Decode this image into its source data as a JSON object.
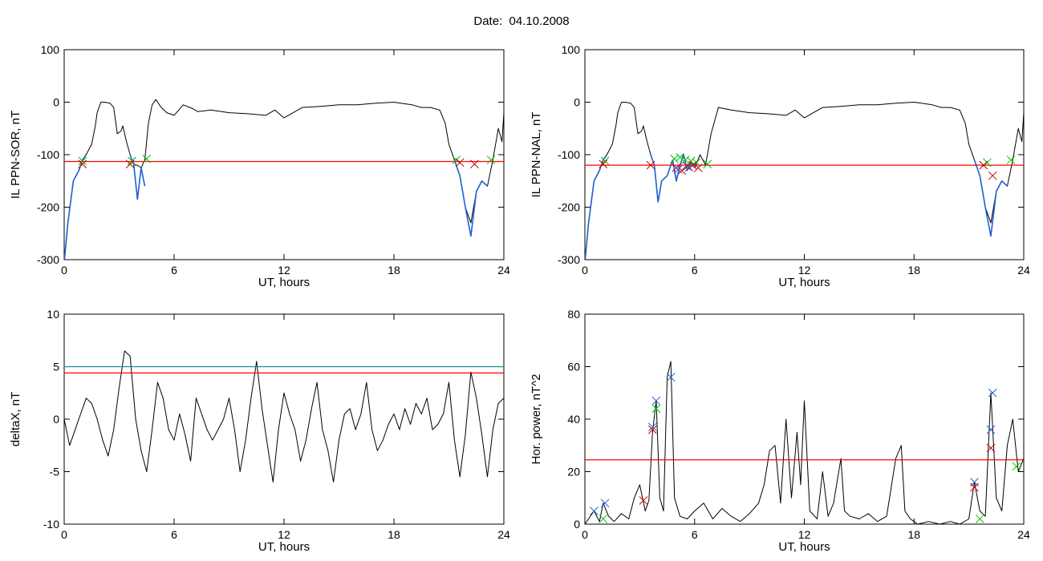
{
  "figure_title": "Date:  04.10.2008",
  "chart_data": [
    {
      "id": "il-ppn-sor",
      "type": "line",
      "xlabel": "UT, hours",
      "ylabel": "IL PPN-SOR, nT",
      "xlim": [
        0,
        24
      ],
      "ylim": [
        -300,
        100
      ],
      "xticks": [
        "0",
        "6",
        "12",
        "18",
        "24"
      ],
      "yticks": [
        "-300",
        "-200",
        "-100",
        "0",
        "100"
      ],
      "threshold_lines": [
        {
          "y": -113,
          "color": "#ff0000"
        }
      ],
      "series": [
        {
          "color": "#000000",
          "x": [
            0,
            0.2,
            0.5,
            0.8,
            1.0,
            1.2,
            1.5,
            1.7,
            1.8,
            2.0,
            2.2,
            2.5,
            2.7,
            2.9,
            3.1,
            3.2,
            3.4,
            3.6,
            3.8,
            4.0,
            4.2,
            4.4,
            4.6,
            4.8,
            5.0,
            5.3,
            5.6,
            6,
            6.5,
            7,
            7.3,
            8,
            9,
            10,
            11,
            11.5,
            12,
            12.5,
            13,
            14,
            15,
            16,
            17,
            18,
            19,
            19.5,
            20,
            20.5,
            20.8,
            21.0,
            21.3,
            21.6,
            21.9,
            22.2,
            22.5,
            22.8,
            23.1,
            23.4,
            23.7,
            23.9,
            24
          ],
          "y": [
            -305,
            -230,
            -150,
            -130,
            -110,
            -100,
            -80,
            -45,
            -20,
            0,
            0,
            -2,
            -10,
            -60,
            -55,
            -45,
            -75,
            -100,
            -120,
            -120,
            -125,
            -110,
            -40,
            -5,
            5,
            -10,
            -20,
            -25,
            -5,
            -12,
            -18,
            -15,
            -20,
            -22,
            -25,
            -15,
            -30,
            -20,
            -10,
            -8,
            -5,
            -5,
            -2,
            0,
            -5,
            -10,
            -10,
            -15,
            -40,
            -80,
            -110,
            -140,
            -200,
            -230,
            -170,
            -150,
            -160,
            -110,
            -50,
            -75,
            -20
          ]
        },
        {
          "color": "#1f5fd0",
          "x": [
            0,
            0.2,
            0.5,
            0.8,
            1.0,
            1.2
          ],
          "y": [
            -305,
            -230,
            -150,
            -130,
            -110,
            -100
          ]
        },
        {
          "color": "#1f5fd0",
          "x": [
            3.6,
            3.8,
            4.0,
            4.2,
            4.4
          ],
          "y": [
            -100,
            -120,
            -185,
            -125,
            -160
          ]
        },
        {
          "color": "#1f5fd0",
          "x": [
            21.3,
            21.6,
            21.9,
            22.2,
            22.5,
            22.8,
            23.1
          ],
          "y": [
            -110,
            -140,
            -200,
            -255,
            -170,
            -150,
            -160
          ]
        }
      ],
      "markers": [
        {
          "color": "#00c000",
          "x": [
            1.0,
            3.7,
            4.5,
            21.4,
            23.3
          ],
          "y": [
            -112,
            -112,
            -108,
            -110,
            -110
          ]
        },
        {
          "color": "#cc0000",
          "x": [
            1.0,
            3.6,
            21.6,
            22.4
          ],
          "y": [
            -118,
            -118,
            -115,
            -118
          ]
        }
      ]
    },
    {
      "id": "il-ppn-nal",
      "type": "line",
      "xlabel": "UT, hours",
      "ylabel": "IL PPN-NAL, nT",
      "xlim": [
        0,
        24
      ],
      "ylim": [
        -300,
        100
      ],
      "xticks": [
        "0",
        "6",
        "12",
        "18",
        "24"
      ],
      "yticks": [
        "-300",
        "-200",
        "-100",
        "0",
        "100"
      ],
      "threshold_lines": [
        {
          "y": -120,
          "color": "#ff0000"
        }
      ],
      "series": [
        {
          "color": "#000000",
          "x": [
            0,
            0.2,
            0.5,
            0.8,
            1.0,
            1.2,
            1.5,
            1.7,
            1.8,
            2.0,
            2.2,
            2.5,
            2.7,
            2.9,
            3.1,
            3.2,
            3.4,
            3.6,
            3.8,
            4.0,
            4.2,
            4.5,
            4.8,
            5.0,
            5.2,
            5.4,
            5.6,
            5.8,
            6.0,
            6.3,
            6.6,
            6.9,
            7.3,
            8,
            9,
            10,
            11,
            11.5,
            12,
            12.5,
            13,
            14,
            15,
            16,
            17,
            18,
            19,
            19.5,
            20,
            20.5,
            20.8,
            21.0,
            21.3,
            21.6,
            21.9,
            22.2,
            22.5,
            22.8,
            23.1,
            23.4,
            23.7,
            23.9,
            24
          ],
          "y": [
            -305,
            -230,
            -150,
            -130,
            -110,
            -100,
            -80,
            -45,
            -20,
            0,
            0,
            -2,
            -10,
            -60,
            -55,
            -45,
            -75,
            -100,
            -120,
            -190,
            -150,
            -140,
            -110,
            -150,
            -120,
            -100,
            -130,
            -115,
            -125,
            -100,
            -120,
            -60,
            -10,
            -15,
            -20,
            -22,
            -25,
            -15,
            -30,
            -20,
            -10,
            -8,
            -5,
            -5,
            -2,
            0,
            -5,
            -10,
            -10,
            -15,
            -40,
            -80,
            -110,
            -140,
            -200,
            -230,
            -170,
            -150,
            -160,
            -110,
            -50,
            -75,
            -20
          ]
        },
        {
          "color": "#1f5fd0",
          "x": [
            0,
            0.2,
            0.5,
            0.8,
            1.0,
            1.2
          ],
          "y": [
            -305,
            -230,
            -150,
            -130,
            -110,
            -100
          ]
        },
        {
          "color": "#1f5fd0",
          "x": [
            3.6,
            3.8,
            4.0,
            4.2,
            4.5,
            4.8,
            5.0,
            5.2,
            5.4,
            5.6,
            5.8,
            6.0
          ],
          "y": [
            -100,
            -120,
            -190,
            -150,
            -140,
            -110,
            -150,
            -120,
            -100,
            -130,
            -115,
            -125
          ]
        },
        {
          "color": "#1f5fd0",
          "x": [
            21.3,
            21.6,
            21.9,
            22.2,
            22.5,
            22.8,
            23.1
          ],
          "y": [
            -110,
            -140,
            -200,
            -255,
            -170,
            -150,
            -160
          ]
        }
      ],
      "markers": [
        {
          "color": "#00c000",
          "x": [
            1.1,
            4.9,
            5.2,
            5.5,
            5.8,
            6.1,
            6.7,
            22.0,
            23.3
          ],
          "y": [
            -112,
            -108,
            -105,
            -110,
            -112,
            -115,
            -118,
            -115,
            -110
          ]
        },
        {
          "color": "#cc0000",
          "x": [
            1.0,
            3.6,
            5.0,
            5.3,
            5.6,
            5.9,
            6.2,
            21.8,
            22.3
          ],
          "y": [
            -118,
            -120,
            -125,
            -130,
            -122,
            -120,
            -125,
            -120,
            -140
          ]
        },
        {
          "color": "#1f5fd0",
          "x": [
            5.1,
            5.7
          ],
          "y": [
            -128,
            -124
          ]
        }
      ]
    },
    {
      "id": "deltax",
      "type": "line",
      "xlabel": "UT, hours",
      "ylabel": "deltaX, nT",
      "xlim": [
        0,
        24
      ],
      "ylim": [
        -10,
        10
      ],
      "xticks": [
        "0",
        "6",
        "12",
        "18",
        "24"
      ],
      "yticks": [
        "-10",
        "-5",
        "0",
        "5",
        "10"
      ],
      "threshold_lines": [
        {
          "y": 5.0,
          "color": "#1f8f8f"
        },
        {
          "y": 4.4,
          "color": "#ff0000"
        }
      ],
      "series": [
        {
          "color": "#000000",
          "x": [
            0,
            0.3,
            0.6,
            0.9,
            1.2,
            1.5,
            1.8,
            2.1,
            2.4,
            2.7,
            3.0,
            3.3,
            3.6,
            3.9,
            4.2,
            4.5,
            4.8,
            5.1,
            5.4,
            5.7,
            6.0,
            6.3,
            6.6,
            6.9,
            7.2,
            7.5,
            7.8,
            8.1,
            8.4,
            8.7,
            9.0,
            9.3,
            9.6,
            9.9,
            10.2,
            10.5,
            10.8,
            11.1,
            11.4,
            11.7,
            12.0,
            12.3,
            12.6,
            12.9,
            13.2,
            13.5,
            13.8,
            14.1,
            14.4,
            14.7,
            15.0,
            15.3,
            15.6,
            15.9,
            16.2,
            16.5,
            16.8,
            17.1,
            17.4,
            17.7,
            18.0,
            18.3,
            18.6,
            18.9,
            19.2,
            19.5,
            19.8,
            20.1,
            20.4,
            20.7,
            21.0,
            21.3,
            21.6,
            21.9,
            22.2,
            22.5,
            22.8,
            23.1,
            23.4,
            23.7,
            24.0
          ],
          "y": [
            0,
            -2.5,
            -1,
            0.5,
            2,
            1.5,
            0,
            -2,
            -3.5,
            -1,
            3,
            6.5,
            6,
            0,
            -3,
            -5,
            -1,
            3.5,
            2,
            -1,
            -2,
            0.5,
            -1.5,
            -4,
            2,
            0.5,
            -1,
            -2,
            -1,
            0,
            2,
            -1,
            -5,
            -2,
            2,
            5.5,
            1,
            -2.5,
            -6,
            -1,
            2.5,
            0.5,
            -1,
            -4,
            -2,
            1,
            3.5,
            -1,
            -3,
            -6,
            -2,
            0.5,
            1,
            -1,
            0.5,
            3.5,
            -1,
            -3,
            -2,
            -0.5,
            0.5,
            -1,
            1,
            -0.5,
            1.5,
            0.5,
            2,
            -1,
            -0.5,
            0.5,
            3.5,
            -2,
            -5.5,
            -1.5,
            4.5,
            2,
            -1.5,
            -5.5,
            -1,
            1.5,
            2
          ]
        }
      ],
      "markers": []
    },
    {
      "id": "hor-power",
      "type": "line",
      "xlabel": "UT, hours",
      "ylabel": "Hor. power, nT^2",
      "xlim": [
        0,
        24
      ],
      "ylim": [
        0,
        80
      ],
      "xticks": [
        "0",
        "6",
        "12",
        "18",
        "24"
      ],
      "yticks": [
        "0",
        "20",
        "40",
        "60",
        "80"
      ],
      "threshold_lines": [
        {
          "y": 24.5,
          "color": "#ff0000"
        }
      ],
      "series": [
        {
          "color": "#000000",
          "x": [
            0,
            0.5,
            0.8,
            1.0,
            1.3,
            1.6,
            2.0,
            2.4,
            2.7,
            3.0,
            3.3,
            3.5,
            3.7,
            3.9,
            4.1,
            4.3,
            4.5,
            4.7,
            4.9,
            5.2,
            5.6,
            6.0,
            6.5,
            7.0,
            7.5,
            8.0,
            8.5,
            9.0,
            9.5,
            9.8,
            10.1,
            10.4,
            10.7,
            11.0,
            11.3,
            11.6,
            11.8,
            12.0,
            12.3,
            12.7,
            13.0,
            13.3,
            13.6,
            14.0,
            14.2,
            14.5,
            15.0,
            15.5,
            16.0,
            16.5,
            17.0,
            17.3,
            17.5,
            17.8,
            18.2,
            18.8,
            19.4,
            20.0,
            20.5,
            21.0,
            21.3,
            21.6,
            21.9,
            22.2,
            22.5,
            22.8,
            23.1,
            23.4,
            23.7,
            24.0
          ],
          "y": [
            0,
            5,
            1,
            8,
            3,
            1,
            4,
            2,
            10,
            15,
            5,
            9,
            35,
            47,
            10,
            5,
            56,
            62,
            10,
            3,
            2,
            5,
            8,
            2,
            6,
            3,
            1,
            4,
            8,
            15,
            28,
            30,
            8,
            40,
            10,
            35,
            15,
            47,
            5,
            2,
            20,
            3,
            8,
            25,
            5,
            3,
            2,
            4,
            1,
            3,
            25,
            30,
            5,
            2,
            0,
            1,
            0,
            1,
            0,
            2,
            16,
            5,
            3,
            50,
            10,
            5,
            30,
            40,
            20,
            25
          ]
        }
      ],
      "markers": [
        {
          "color": "#1f5fd0",
          "x": [
            0.5,
            1.1,
            3.7,
            3.9,
            4.7,
            21.3,
            22.2,
            22.3
          ],
          "y": [
            5,
            8,
            37,
            47,
            56,
            16,
            36,
            50
          ]
        },
        {
          "color": "#cc0000",
          "x": [
            3.2,
            3.7,
            21.3,
            22.2
          ],
          "y": [
            9,
            36,
            14,
            29
          ]
        },
        {
          "color": "#00c000",
          "x": [
            1.0,
            3.9,
            21.6,
            23.6
          ],
          "y": [
            2,
            44,
            2,
            22
          ]
        }
      ]
    }
  ]
}
